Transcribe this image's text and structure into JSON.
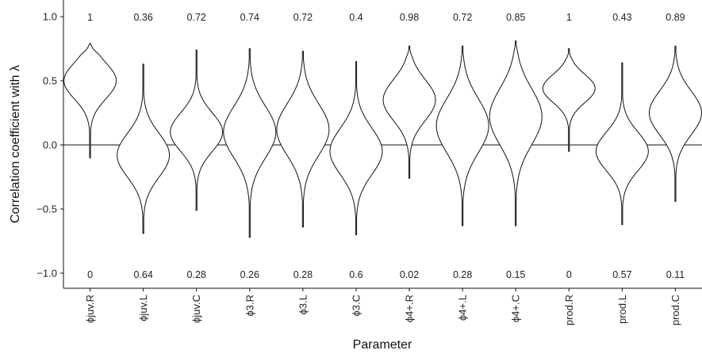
{
  "chart_data": {
    "type": "violin",
    "xlabel": "Parameter",
    "ylabel": "Correlation coefficient with λ",
    "ylim": [
      -1.1,
      1.1
    ],
    "yticks": [
      -1.0,
      -0.5,
      0.0,
      0.5,
      1.0
    ],
    "ytick_labels": [
      "−1.0",
      "−0.5",
      "0.0",
      "0.5",
      "1.0"
    ],
    "reference_line": 0,
    "grid": false,
    "categories": [
      "ϕjuv.R",
      "ϕjuv.L",
      "ϕjuv.C",
      "ϕ3.R",
      "ϕ3.L",
      "ϕ3.C",
      "ϕ4+.R",
      "ϕ4+.L",
      "ϕ4+.C",
      "prod.R",
      "prod.L",
      "prod.C"
    ],
    "top_annotations": [
      "1",
      "0.36",
      "0.72",
      "0.74",
      "0.72",
      "0.4",
      "0.98",
      "0.72",
      "0.85",
      "1",
      "0.43",
      "0.89"
    ],
    "bottom_annotations": [
      "0",
      "0.64",
      "0.28",
      "0.26",
      "0.28",
      "0.6",
      "0.02",
      "0.28",
      "0.15",
      "0",
      "0.57",
      "0.11"
    ],
    "violins": [
      {
        "min": -0.1,
        "max": 0.79,
        "mode": 0.5,
        "spread": 0.14
      },
      {
        "min": -0.69,
        "max": 0.63,
        "mode": -0.08,
        "spread": 0.17
      },
      {
        "min": -0.51,
        "max": 0.74,
        "mode": 0.1,
        "spread": 0.15
      },
      {
        "min": -0.72,
        "max": 0.75,
        "mode": 0.1,
        "spread": 0.2
      },
      {
        "min": -0.64,
        "max": 0.73,
        "mode": 0.12,
        "spread": 0.2
      },
      {
        "min": -0.7,
        "max": 0.65,
        "mode": -0.05,
        "spread": 0.18
      },
      {
        "min": -0.26,
        "max": 0.77,
        "mode": 0.35,
        "spread": 0.16
      },
      {
        "min": -0.63,
        "max": 0.77,
        "mode": 0.15,
        "spread": 0.21
      },
      {
        "min": -0.63,
        "max": 0.81,
        "mode": 0.22,
        "spread": 0.22
      },
      {
        "min": -0.05,
        "max": 0.75,
        "mode": 0.44,
        "spread": 0.11
      },
      {
        "min": -0.62,
        "max": 0.64,
        "mode": -0.05,
        "spread": 0.15
      },
      {
        "min": -0.44,
        "max": 0.77,
        "mode": 0.25,
        "spread": 0.17
      }
    ]
  }
}
